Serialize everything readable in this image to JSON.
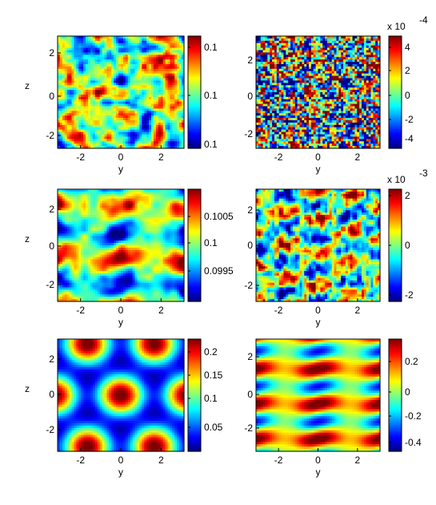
{
  "chart_data": [
    {
      "type": "heatmap",
      "pattern": "random",
      "xlabel": "y",
      "ylabel": "z",
      "xlim": [
        -3.14,
        3.14
      ],
      "ylim": [
        -3.14,
        3.14
      ],
      "xticks": [
        "-2",
        "0",
        "2"
      ],
      "yticks": [
        "2",
        "0",
        "-2"
      ],
      "colorbar": {
        "ticks": [
          "0.1",
          "0.1",
          "0.1"
        ],
        "exponent_base": "",
        "exponent_power": ""
      },
      "colormap": "jet"
    },
    {
      "type": "heatmap",
      "pattern": "noise",
      "xlabel": "y",
      "ylabel": "",
      "xlim": [
        -3.14,
        3.14
      ],
      "ylim": [
        -3.14,
        3.14
      ],
      "xticks": [
        "-2",
        "0",
        "2"
      ],
      "yticks": [
        "2",
        "0",
        "-2"
      ],
      "colorbar": {
        "ticks": [
          "4",
          "2",
          "0",
          "-2",
          "-4"
        ],
        "exponent_base": "x 10",
        "exponent_power": "-4"
      },
      "colormap": "jet"
    },
    {
      "type": "heatmap",
      "pattern": "waves",
      "xlabel": "y",
      "ylabel": "z",
      "xlim": [
        -3.14,
        3.14
      ],
      "ylim": [
        -3.14,
        3.14
      ],
      "xticks": [
        "-2",
        "0",
        "2"
      ],
      "yticks": [
        "2",
        "0",
        "-2"
      ],
      "colorbar": {
        "ticks": [
          "0.1005",
          "0.1",
          "0.0995"
        ],
        "exponent_base": "",
        "exponent_power": ""
      },
      "colormap": "jet"
    },
    {
      "type": "heatmap",
      "pattern": "streaks",
      "xlabel": "y",
      "ylabel": "",
      "xlim": [
        -3.14,
        3.14
      ],
      "ylim": [
        -3.14,
        3.14
      ],
      "xticks": [
        "-2",
        "0",
        "2"
      ],
      "yticks": [
        "2",
        "0",
        "-2"
      ],
      "colorbar": {
        "ticks": [
          "2",
          "0",
          "-2"
        ],
        "exponent_base": "x 10",
        "exponent_power": "-3"
      },
      "colormap": "jet"
    },
    {
      "type": "heatmap",
      "pattern": "hex",
      "xlabel": "y",
      "ylabel": "z",
      "xlim": [
        -3.14,
        3.14
      ],
      "ylim": [
        -3.14,
        3.14
      ],
      "xticks": [
        "-2",
        "0",
        "2"
      ],
      "yticks": [
        "2",
        "0",
        "-2"
      ],
      "colorbar": {
        "ticks": [
          "0.2",
          "0.15",
          "0.1",
          "0.05"
        ],
        "exponent_base": "",
        "exponent_power": ""
      },
      "colormap": "jet"
    },
    {
      "type": "heatmap",
      "pattern": "bands",
      "xlabel": "y",
      "ylabel": "",
      "xlim": [
        -3.14,
        3.14
      ],
      "ylim": [
        -3.14,
        3.14
      ],
      "xticks": [
        "-2",
        "0",
        "2"
      ],
      "yticks": [
        "2",
        "0",
        "-2"
      ],
      "colorbar": {
        "ticks": [
          "0.2",
          "0",
          "-0.2",
          "-0.4"
        ],
        "exponent_base": "",
        "exponent_power": ""
      },
      "colormap": "jet"
    }
  ]
}
